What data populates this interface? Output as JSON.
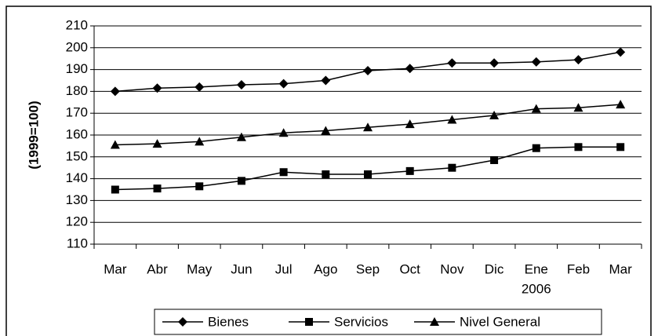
{
  "chart_data": {
    "type": "line",
    "y_label": "(1999=100)",
    "categories": [
      "Mar",
      "Abr",
      "May",
      "Jun",
      "Jul",
      "Ago",
      "Sep",
      "Oct",
      "Nov",
      "Dic",
      "Ene",
      "Feb",
      "Mar"
    ],
    "category_sublabels": [
      null,
      null,
      null,
      null,
      null,
      null,
      null,
      null,
      null,
      null,
      "2006",
      null,
      null
    ],
    "series": [
      {
        "name": "Bienes",
        "color": "#000000",
        "marker": "diamond",
        "values": [
          180,
          181.5,
          182,
          183,
          183.5,
          185,
          189.5,
          190.5,
          193,
          193,
          193.5,
          194.5,
          198
        ]
      },
      {
        "name": "Servicios",
        "color": "#000000",
        "marker": "square",
        "values": [
          135,
          135.5,
          136.5,
          139,
          143,
          142,
          142,
          143.5,
          145,
          148.5,
          154,
          154.5,
          154.5
        ]
      },
      {
        "name": "Nivel General",
        "color": "#000000",
        "marker": "triangle",
        "values": [
          155.5,
          156,
          157,
          159,
          161,
          162,
          163.5,
          165,
          167,
          169,
          172,
          172.5,
          174
        ]
      }
    ],
    "ylim": [
      110,
      210
    ],
    "yticks": [
      110,
      120,
      130,
      140,
      150,
      160,
      170,
      180,
      190,
      200,
      210
    ],
    "grid": true,
    "legend": "bottom"
  }
}
